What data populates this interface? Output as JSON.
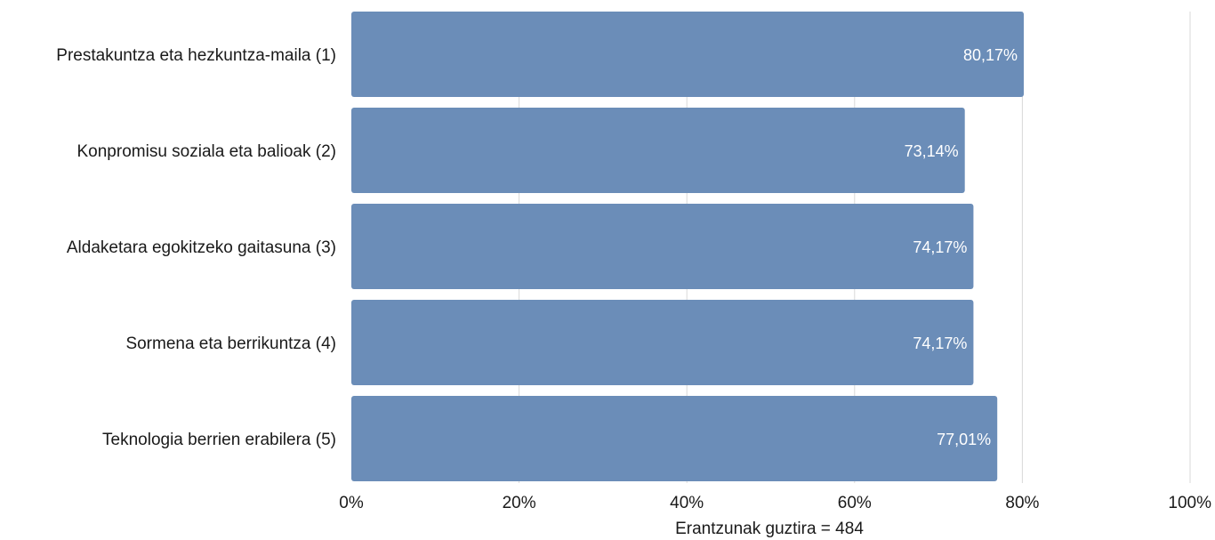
{
  "chart_data": {
    "type": "bar",
    "orientation": "horizontal",
    "categories": [
      "Prestakuntza eta hezkuntza-maila (1)",
      "Konpromisu soziala eta balioak (2)",
      "Aldaketara egokitzeko gaitasuna (3)",
      "Sormena eta berrikuntza (4)",
      "Teknologia berrien erabilera (5)"
    ],
    "values": [
      80.17,
      73.14,
      74.17,
      74.17,
      77.01
    ],
    "value_labels": [
      "80,17%",
      "73,14%",
      "74,17%",
      "74,17%",
      "77,01%"
    ],
    "xlim": [
      0,
      100
    ],
    "x_ticks": [
      0,
      20,
      40,
      60,
      80,
      100
    ],
    "x_tick_labels": [
      "0%",
      "20%",
      "40%",
      "60%",
      "80%",
      "100%"
    ],
    "xlabel": "Erantzunak guztira = 484",
    "ylabel": "",
    "title": "",
    "grid": "vertical",
    "legend": "none",
    "bar_color": "#6b8db8",
    "grid_color": "#d9d9d9",
    "text_color": "#1a1a1a",
    "value_label_color": "#ffffff"
  }
}
